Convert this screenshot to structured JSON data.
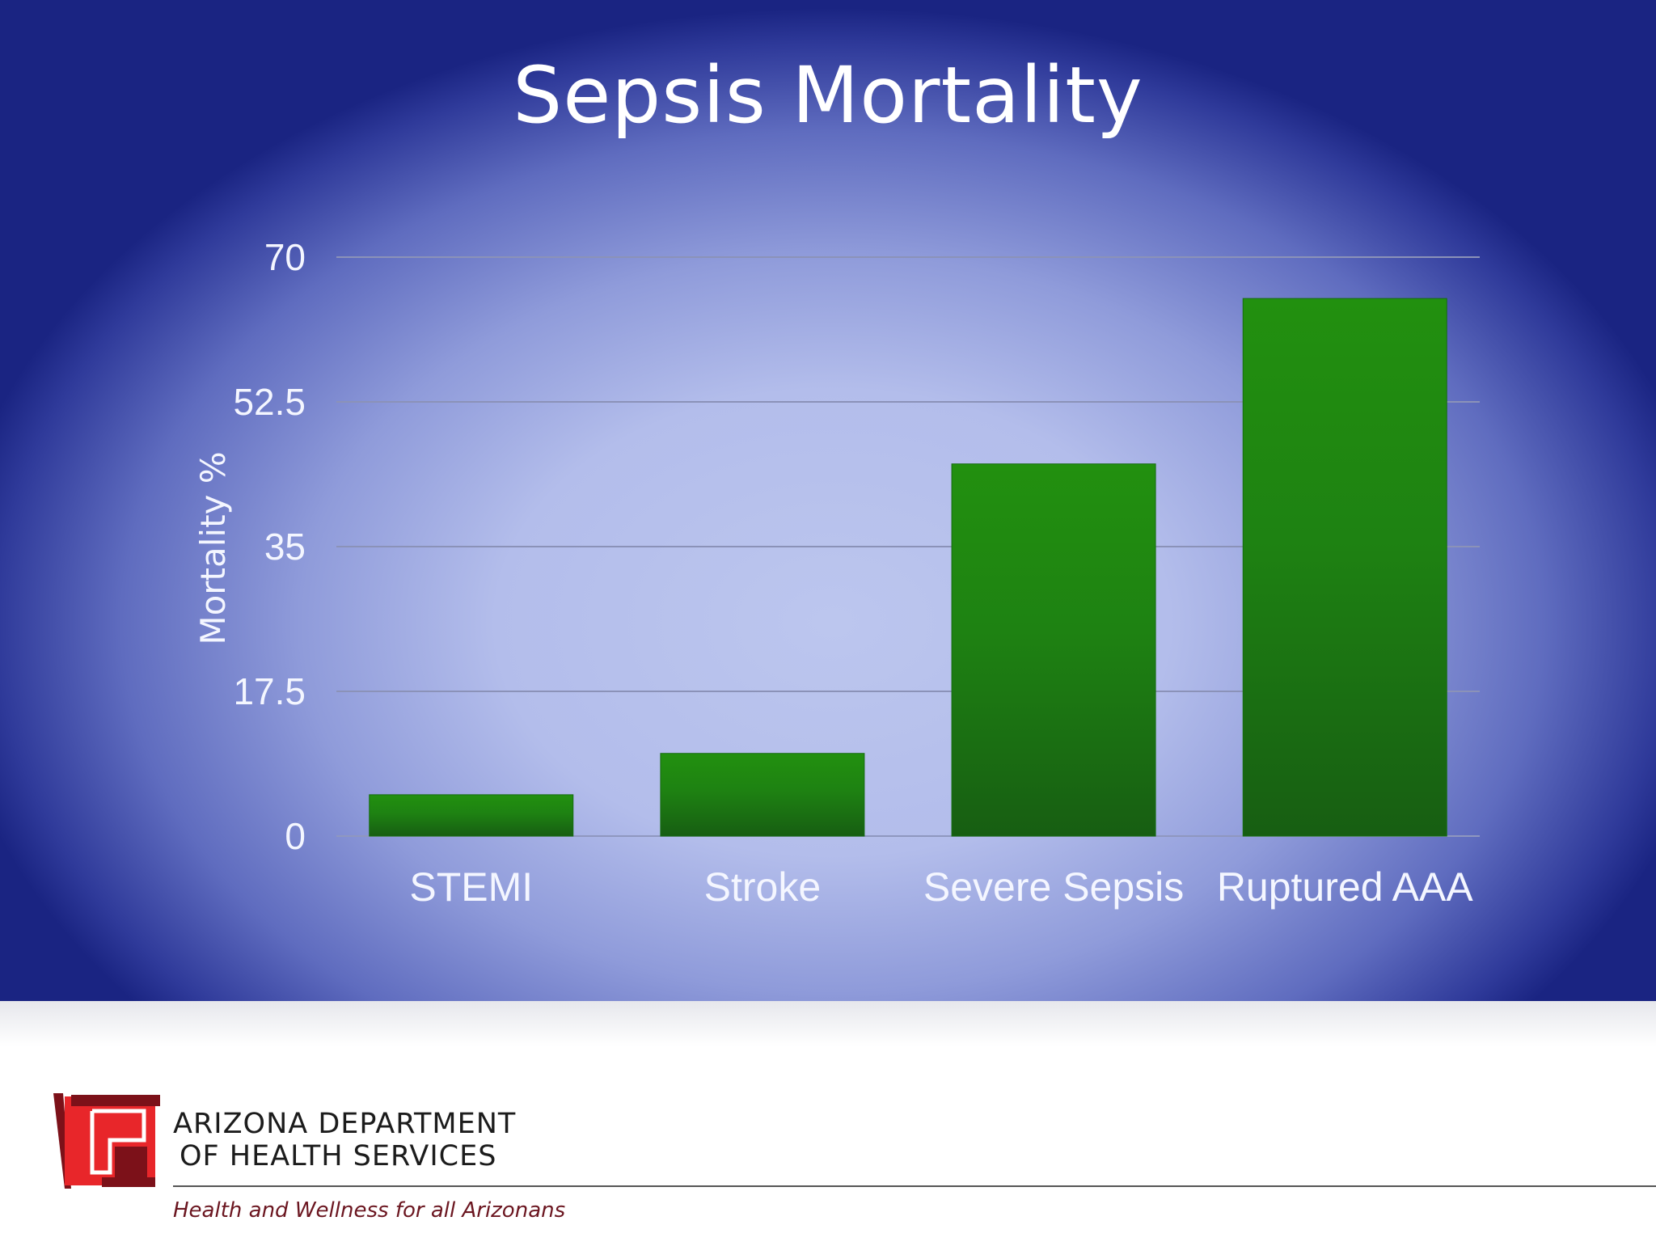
{
  "slide": {
    "title": "Sepsis Mortality"
  },
  "chart_data": {
    "type": "bar",
    "categories": [
      "STEMI",
      "Stroke",
      "Severe Sepsis",
      "Ruptured AAA"
    ],
    "values": [
      5,
      10,
      45,
      65
    ],
    "title": "",
    "xlabel": "",
    "ylabel": "Mortality %",
    "ylim": [
      0,
      70
    ],
    "yticks": [
      "0",
      "17.5",
      "35",
      "52.5",
      "70"
    ],
    "grid": true,
    "legend": "none",
    "bar_color": "#1f8a12"
  },
  "footer": {
    "org_line_1": "ARIZONA DEPARTMENT",
    "org_line_2": "OF HEALTH SERVICES",
    "tagline": "Health and Wellness for all Arizonans",
    "logo_colors": {
      "dark": "#7c1119",
      "bright": "#e8262a",
      "white": "#ffffff"
    }
  }
}
